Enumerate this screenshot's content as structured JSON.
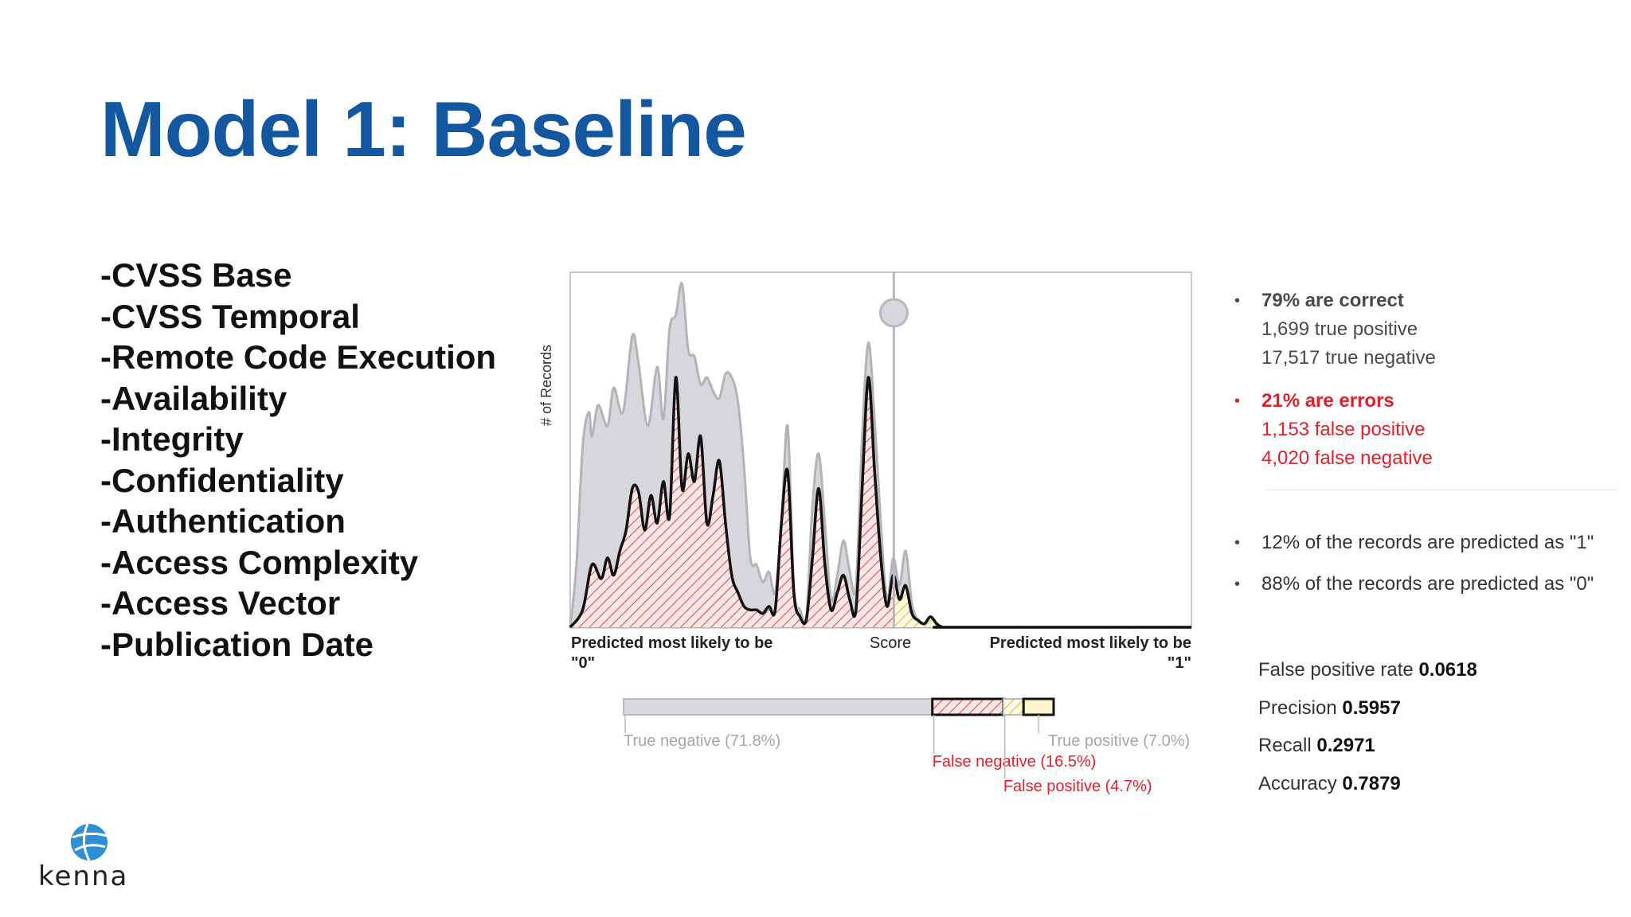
{
  "slide": {
    "title": "Model 1: Baseline",
    "features": [
      "-CVSS Base",
      "-CVSS Temporal",
      "-Remote Code Execution",
      "-Availability",
      "-Integrity",
      "-Confidentiality",
      "-Authentication",
      "-Access Complexity",
      "-Access Vector",
      "-Publication Date"
    ]
  },
  "chart_data": {
    "type": "area",
    "ylabel": "# of Records",
    "xlabel": "Score",
    "x_left_label_line1": "Predicted most likely to be",
    "x_left_label_line2": "\"0\"",
    "x_right_label_line1": "Predicted most likely to be",
    "x_right_label_line2": "\"1\"",
    "xlim": [
      0,
      1
    ],
    "ylim": [
      0,
      1
    ],
    "threshold": 0.521,
    "series": [
      {
        "key": "all-records",
        "color": "#d7d7db",
        "stroke": "#b4b4b8",
        "x": [
          0.0,
          0.01,
          0.02,
          0.03,
          0.035,
          0.045,
          0.06,
          0.07,
          0.085,
          0.1,
          0.11,
          0.125,
          0.14,
          0.15,
          0.16,
          0.17,
          0.18,
          0.19,
          0.2,
          0.21,
          0.22,
          0.23,
          0.24,
          0.25,
          0.26,
          0.27,
          0.28,
          0.29,
          0.3,
          0.31,
          0.32,
          0.33,
          0.34,
          0.35,
          0.36,
          0.37,
          0.38,
          0.39,
          0.4,
          0.41,
          0.42,
          0.43,
          0.44,
          0.45,
          0.46,
          0.47,
          0.48,
          0.49,
          0.5,
          0.51,
          0.52,
          0.53,
          0.54,
          0.55,
          0.56,
          0.57,
          0.58,
          0.6,
          0.62,
          1.0
        ],
        "y": [
          0.0,
          0.18,
          0.52,
          0.62,
          0.55,
          0.64,
          0.58,
          0.69,
          0.62,
          0.84,
          0.76,
          0.58,
          0.75,
          0.6,
          0.86,
          0.9,
          0.99,
          0.8,
          0.78,
          0.7,
          0.72,
          0.68,
          0.66,
          0.73,
          0.72,
          0.65,
          0.46,
          0.2,
          0.18,
          0.13,
          0.16,
          0.1,
          0.3,
          0.58,
          0.12,
          0.05,
          0.03,
          0.35,
          0.5,
          0.3,
          0.08,
          0.15,
          0.25,
          0.16,
          0.12,
          0.55,
          0.82,
          0.6,
          0.3,
          0.08,
          0.2,
          0.12,
          0.22,
          0.07,
          0.02,
          0.01,
          0.0,
          0.0,
          0.0,
          0.0
        ]
      },
      {
        "key": "positive-records",
        "color": "#e8a3a3",
        "stroke": "#111111",
        "x": [
          0.0,
          0.02,
          0.035,
          0.05,
          0.06,
          0.07,
          0.08,
          0.09,
          0.1,
          0.11,
          0.12,
          0.13,
          0.14,
          0.15,
          0.16,
          0.17,
          0.18,
          0.19,
          0.2,
          0.21,
          0.22,
          0.23,
          0.24,
          0.25,
          0.26,
          0.27,
          0.28,
          0.29,
          0.3,
          0.31,
          0.32,
          0.33,
          0.34,
          0.35,
          0.36,
          0.37,
          0.38,
          0.39,
          0.4,
          0.41,
          0.42,
          0.43,
          0.44,
          0.45,
          0.46,
          0.47,
          0.48,
          0.49,
          0.5,
          0.51,
          0.52,
          0.53,
          0.54,
          0.55,
          0.56,
          0.57,
          0.58,
          0.59,
          0.6,
          0.62,
          1.0
        ],
        "y": [
          0.0,
          0.05,
          0.18,
          0.14,
          0.2,
          0.15,
          0.22,
          0.28,
          0.4,
          0.39,
          0.28,
          0.38,
          0.3,
          0.42,
          0.32,
          0.72,
          0.4,
          0.5,
          0.42,
          0.55,
          0.3,
          0.38,
          0.48,
          0.3,
          0.15,
          0.1,
          0.06,
          0.05,
          0.05,
          0.04,
          0.06,
          0.05,
          0.3,
          0.45,
          0.1,
          0.03,
          0.02,
          0.2,
          0.4,
          0.18,
          0.05,
          0.1,
          0.15,
          0.08,
          0.05,
          0.4,
          0.72,
          0.45,
          0.2,
          0.06,
          0.15,
          0.08,
          0.12,
          0.04,
          0.02,
          0.01,
          0.03,
          0.01,
          0.0,
          0.0,
          0.0
        ]
      }
    ],
    "breakdown": [
      {
        "key": "true-negative",
        "label": "True negative (71.8%)",
        "value": 71.8,
        "fill": "#d9d9de",
        "label_color": "#a6a6a6"
      },
      {
        "key": "false-negative",
        "label": "False negative (16.5%)",
        "value": 16.5,
        "fill": "#e8a3a3",
        "label_color": "#e0202b"
      },
      {
        "key": "false-positive",
        "label": "False positive (4.7%)",
        "value": 4.7,
        "fill": "#f3e3b3",
        "label_color": "#e0202b"
      },
      {
        "key": "true-positive",
        "label": "True positive (7.0%)",
        "value": 7.0,
        "fill": "#fff7cf",
        "label_color": "#a6a6a6"
      }
    ]
  },
  "stats": {
    "correct": {
      "headline": "79% are correct",
      "line1": "1,699 true positive",
      "line2": "17,517 true negative"
    },
    "errors": {
      "headline": "21% are errors",
      "line1": "1,153 false positive",
      "line2": "4,020 false negative"
    },
    "predicted_one": "12% of the records are predicted as \"1\"",
    "predicted_zero": "88% of the records are predicted as \"0\""
  },
  "metrics": [
    {
      "label": "False positive rate",
      "value": "0.0618"
    },
    {
      "label": "Precision",
      "value": "0.5957"
    },
    {
      "label": "Recall",
      "value": "0.2971"
    },
    {
      "label": "Accuracy",
      "value": "0.7879"
    }
  ],
  "logo": {
    "text": "kenna",
    "color": "#2d8fd6"
  }
}
